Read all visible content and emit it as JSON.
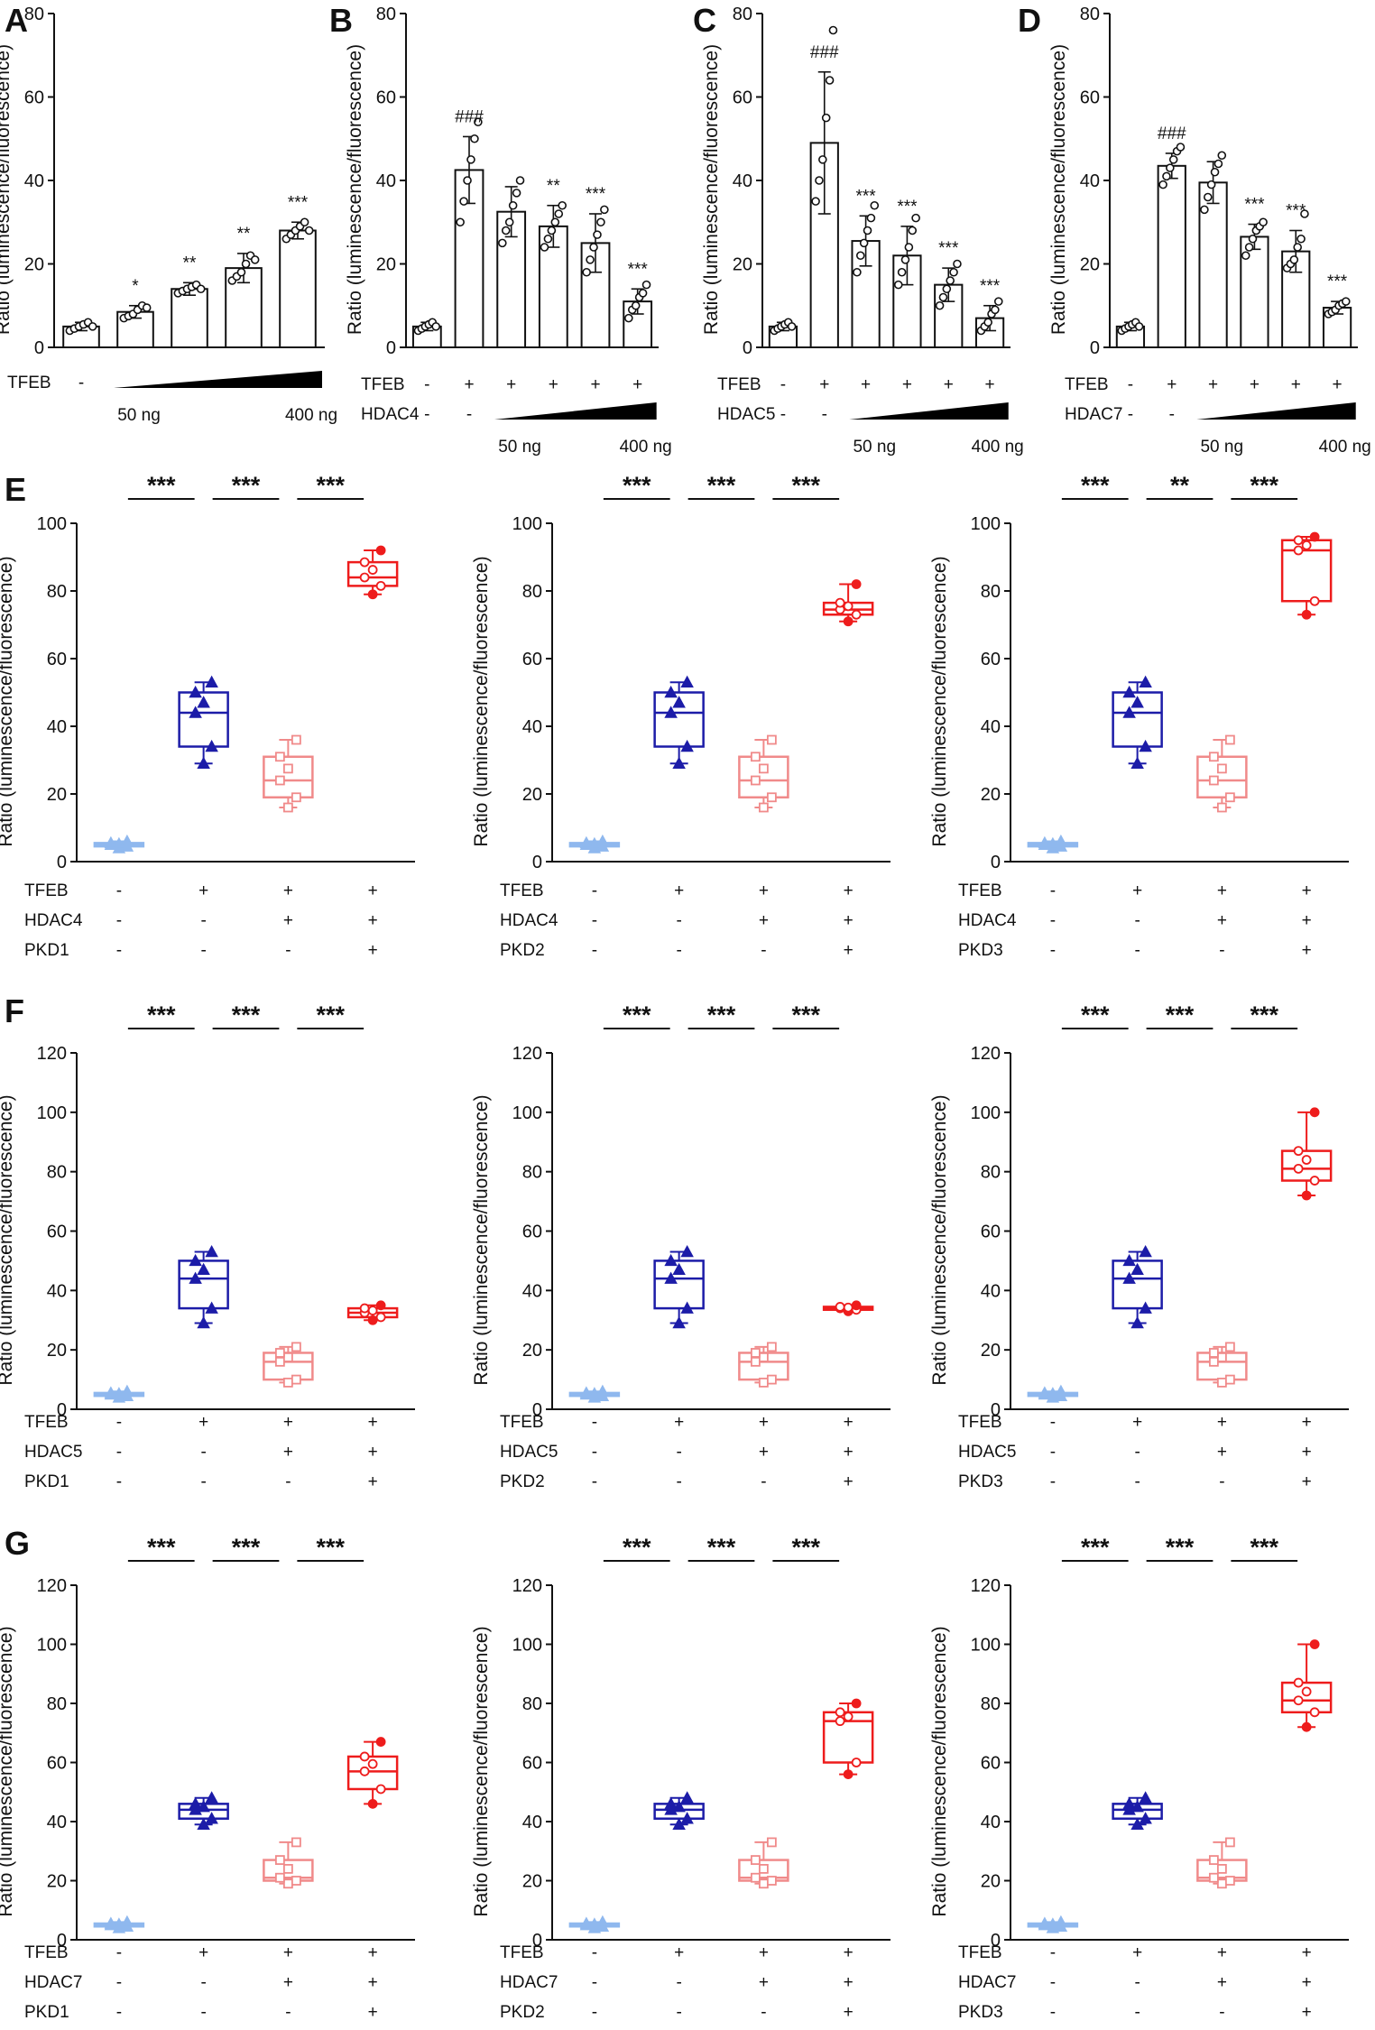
{
  "figure": {
    "ylabel": "Ratio (luminescence/fluorescence)",
    "dose_low": "50 ng",
    "dose_high": "400 ng"
  },
  "chart_data": [
    {
      "panel": "A",
      "type": "bar",
      "ylim": [
        0,
        80
      ],
      "yticks": [
        0,
        20,
        40,
        60,
        80
      ],
      "ylabel": "Ratio (luminescence/fluorescence)",
      "categories": [
        "-",
        "50 ng",
        "",
        "",
        "400 ng"
      ],
      "values": [
        5,
        8.5,
        14,
        19,
        28
      ],
      "errors": [
        1,
        1.5,
        1.5,
        3.5,
        2
      ],
      "points": [
        [
          4,
          4.5,
          5,
          5.5,
          6,
          5
        ],
        [
          7,
          7.5,
          8,
          9,
          10,
          9.5
        ],
        [
          13,
          13.5,
          14,
          14.5,
          15,
          14
        ],
        [
          16,
          17,
          18,
          20,
          22,
          21
        ],
        [
          26,
          27,
          28,
          29,
          30,
          28
        ]
      ],
      "annotations": [
        "",
        "*",
        "**",
        "**",
        "***"
      ],
      "conditions": [
        {
          "name": "TFEB",
          "marks": [
            "-",
            "ramp",
            "ramp",
            "ramp",
            "ramp"
          ]
        }
      ]
    },
    {
      "panel": "B",
      "type": "bar",
      "ylim": [
        0,
        80
      ],
      "yticks": [
        0,
        20,
        40,
        60,
        80
      ],
      "ylabel": "Ratio (luminescence/fluorescence)",
      "values": [
        5,
        42.5,
        32.5,
        29,
        25,
        11
      ],
      "errors": [
        1,
        8,
        6,
        5,
        7,
        3
      ],
      "points": [
        [
          4,
          4.5,
          5,
          5.5,
          6,
          5
        ],
        [
          30,
          35,
          40,
          45,
          50,
          54
        ],
        [
          25,
          28,
          30,
          34,
          37,
          40
        ],
        [
          24,
          26,
          28,
          30,
          32,
          34
        ],
        [
          18,
          21,
          24,
          27,
          30,
          33
        ],
        [
          7,
          9,
          10,
          12,
          13,
          15
        ]
      ],
      "annotations": [
        "",
        "###",
        "",
        "**",
        "***",
        "***"
      ],
      "conditions": [
        {
          "name": "TFEB",
          "marks": [
            "-",
            "+",
            "+",
            "+",
            "+",
            "+"
          ]
        },
        {
          "name": "HDAC4",
          "marks": [
            "-",
            "-",
            "ramp",
            "ramp",
            "ramp",
            "ramp"
          ]
        }
      ]
    },
    {
      "panel": "C",
      "type": "bar",
      "ylim": [
        0,
        80
      ],
      "yticks": [
        0,
        20,
        40,
        60,
        80
      ],
      "ylabel": "Ratio (luminescence/fluorescence)",
      "values": [
        5,
        49,
        25.5,
        22,
        15,
        7
      ],
      "errors": [
        1,
        17,
        6,
        7,
        4,
        3
      ],
      "points": [
        [
          4,
          4.5,
          5,
          5.5,
          6,
          5
        ],
        [
          35,
          40,
          45,
          55,
          64,
          76
        ],
        [
          18,
          22,
          25,
          28,
          31,
          34
        ],
        [
          15,
          18,
          21,
          24,
          28,
          31
        ],
        [
          10,
          12,
          14,
          16,
          18,
          20
        ],
        [
          4,
          5,
          6,
          8,
          9,
          11
        ]
      ],
      "annotations": [
        "",
        "###",
        "***",
        "***",
        "***",
        "***"
      ],
      "conditions": [
        {
          "name": "TFEB",
          "marks": [
            "-",
            "+",
            "+",
            "+",
            "+",
            "+"
          ]
        },
        {
          "name": "HDAC5",
          "marks": [
            "-",
            "-",
            "ramp",
            "ramp",
            "ramp",
            "ramp"
          ]
        }
      ]
    },
    {
      "panel": "D",
      "type": "bar",
      "ylim": [
        0,
        80
      ],
      "yticks": [
        0,
        20,
        40,
        60,
        80
      ],
      "ylabel": "Ratio (luminescence/fluorescence)",
      "values": [
        5,
        43.5,
        39.5,
        26.5,
        23,
        9.5
      ],
      "errors": [
        1,
        3,
        5,
        3,
        5,
        1.5
      ],
      "points": [
        [
          4,
          4.5,
          5,
          5.5,
          6,
          5
        ],
        [
          39,
          41,
          43,
          45,
          47,
          48
        ],
        [
          33,
          36,
          39,
          42,
          44,
          46
        ],
        [
          22,
          24,
          26,
          28,
          29,
          30
        ],
        [
          19,
          20,
          21,
          24,
          26,
          32
        ],
        [
          8,
          8.5,
          9,
          10,
          10.5,
          11
        ]
      ],
      "annotations": [
        "",
        "###",
        "",
        "***",
        "***",
        "***"
      ],
      "conditions": [
        {
          "name": "TFEB",
          "marks": [
            "-",
            "+",
            "+",
            "+",
            "+",
            "+"
          ]
        },
        {
          "name": "HDAC7",
          "marks": [
            "-",
            "-",
            "ramp",
            "ramp",
            "ramp",
            "ramp"
          ]
        }
      ]
    },
    {
      "panel": "E",
      "type": "box",
      "ylim": [
        0,
        100
      ],
      "yticks": [
        0,
        20,
        40,
        60,
        80,
        100
      ],
      "ylabel": "Ratio (luminescence/fluorescence)",
      "boxes": [
        {
          "min": 4,
          "q1": 4.5,
          "median": 5,
          "q3": 5.5,
          "max": 6
        },
        {
          "min": 29,
          "q1": 34,
          "median": 44,
          "q3": 50,
          "max": 53
        },
        {
          "min": 16,
          "q1": 19,
          "median": 24,
          "q3": 31,
          "max": 36
        },
        {
          "min": 79,
          "q1": 81.5,
          "median": 84,
          "q3": 88.5,
          "max": 92
        }
      ],
      "brackets": [
        "***",
        "***",
        "***"
      ],
      "conditions": [
        {
          "name": "TFEB",
          "marks": [
            "-",
            "+",
            "+",
            "+"
          ]
        },
        {
          "name": "HDAC4",
          "marks": [
            "-",
            "-",
            "+",
            "+"
          ]
        },
        {
          "name": "PKD1",
          "marks": [
            "-",
            "-",
            "-",
            "+"
          ]
        }
      ]
    },
    {
      "panel": "E",
      "type": "box",
      "ylim": [
        0,
        100
      ],
      "yticks": [
        0,
        20,
        40,
        60,
        80,
        100
      ],
      "ylabel": "Ratio (luminescence/fluorescence)",
      "boxes": [
        {
          "min": 4,
          "q1": 4.5,
          "median": 5,
          "q3": 5.5,
          "max": 6
        },
        {
          "min": 29,
          "q1": 34,
          "median": 44,
          "q3": 50,
          "max": 53
        },
        {
          "min": 16,
          "q1": 19,
          "median": 24,
          "q3": 31,
          "max": 36
        },
        {
          "min": 71,
          "q1": 73,
          "median": 74.5,
          "q3": 76.5,
          "max": 82
        }
      ],
      "brackets": [
        "***",
        "***",
        "***"
      ],
      "conditions": [
        {
          "name": "TFEB",
          "marks": [
            "-",
            "+",
            "+",
            "+"
          ]
        },
        {
          "name": "HDAC4",
          "marks": [
            "-",
            "-",
            "+",
            "+"
          ]
        },
        {
          "name": "PKD2",
          "marks": [
            "-",
            "-",
            "-",
            "+"
          ]
        }
      ]
    },
    {
      "panel": "E",
      "type": "box",
      "ylim": [
        0,
        100
      ],
      "yticks": [
        0,
        20,
        40,
        60,
        80,
        100
      ],
      "ylabel": "Ratio (luminescence/fluorescence)",
      "boxes": [
        {
          "min": 4,
          "q1": 4.5,
          "median": 5,
          "q3": 5.5,
          "max": 6
        },
        {
          "min": 29,
          "q1": 34,
          "median": 44,
          "q3": 50,
          "max": 53
        },
        {
          "min": 16,
          "q1": 19,
          "median": 24,
          "q3": 31,
          "max": 36
        },
        {
          "min": 73,
          "q1": 77,
          "median": 92,
          "q3": 95,
          "max": 96
        }
      ],
      "brackets": [
        "***",
        "**",
        "***"
      ],
      "conditions": [
        {
          "name": "TFEB",
          "marks": [
            "-",
            "+",
            "+",
            "+"
          ]
        },
        {
          "name": "HDAC4",
          "marks": [
            "-",
            "-",
            "+",
            "+"
          ]
        },
        {
          "name": "PKD3",
          "marks": [
            "-",
            "-",
            "-",
            "+"
          ]
        }
      ]
    },
    {
      "panel": "F",
      "type": "box",
      "ylim": [
        0,
        120
      ],
      "yticks": [
        0,
        20,
        40,
        60,
        80,
        100,
        120
      ],
      "ylabel": "Ratio (luminescence/fluorescence)",
      "boxes": [
        {
          "min": 4,
          "q1": 4.5,
          "median": 5,
          "q3": 5.5,
          "max": 6
        },
        {
          "min": 29,
          "q1": 34,
          "median": 44,
          "q3": 50,
          "max": 53
        },
        {
          "min": 9,
          "q1": 10,
          "median": 16,
          "q3": 19,
          "max": 21
        },
        {
          "min": 30,
          "q1": 31,
          "median": 32.5,
          "q3": 34,
          "max": 35
        }
      ],
      "brackets": [
        "***",
        "***",
        "***"
      ],
      "conditions": [
        {
          "name": "TFEB",
          "marks": [
            "-",
            "+",
            "+",
            "+"
          ]
        },
        {
          "name": "HDAC5",
          "marks": [
            "-",
            "-",
            "+",
            "+"
          ]
        },
        {
          "name": "PKD1",
          "marks": [
            "-",
            "-",
            "-",
            "+"
          ]
        }
      ]
    },
    {
      "panel": "F",
      "type": "box",
      "ylim": [
        0,
        120
      ],
      "yticks": [
        0,
        20,
        40,
        60,
        80,
        100,
        120
      ],
      "ylabel": "Ratio (luminescence/fluorescence)",
      "boxes": [
        {
          "min": 4,
          "q1": 4.5,
          "median": 5,
          "q3": 5.5,
          "max": 6
        },
        {
          "min": 29,
          "q1": 34,
          "median": 44,
          "q3": 50,
          "max": 53
        },
        {
          "min": 9,
          "q1": 10,
          "median": 16,
          "q3": 19,
          "max": 21
        },
        {
          "min": 33,
          "q1": 33.5,
          "median": 34,
          "q3": 34.5,
          "max": 35
        }
      ],
      "brackets": [
        "***",
        "***",
        "***"
      ],
      "conditions": [
        {
          "name": "TFEB",
          "marks": [
            "-",
            "+",
            "+",
            "+"
          ]
        },
        {
          "name": "HDAC5",
          "marks": [
            "-",
            "-",
            "+",
            "+"
          ]
        },
        {
          "name": "PKD2",
          "marks": [
            "-",
            "-",
            "-",
            "+"
          ]
        }
      ]
    },
    {
      "panel": "F",
      "type": "box",
      "ylim": [
        0,
        120
      ],
      "yticks": [
        0,
        20,
        40,
        60,
        80,
        100,
        120
      ],
      "ylabel": "Ratio (luminescence/fluorescence)",
      "boxes": [
        {
          "min": 4,
          "q1": 4.5,
          "median": 5,
          "q3": 5.5,
          "max": 6
        },
        {
          "min": 29,
          "q1": 34,
          "median": 44,
          "q3": 50,
          "max": 53
        },
        {
          "min": 9,
          "q1": 10,
          "median": 16,
          "q3": 19,
          "max": 21
        },
        {
          "min": 72,
          "q1": 77,
          "median": 81,
          "q3": 87,
          "max": 100
        }
      ],
      "brackets": [
        "***",
        "***",
        "***"
      ],
      "conditions": [
        {
          "name": "TFEB",
          "marks": [
            "-",
            "+",
            "+",
            "+"
          ]
        },
        {
          "name": "HDAC5",
          "marks": [
            "-",
            "-",
            "+",
            "+"
          ]
        },
        {
          "name": "PKD3",
          "marks": [
            "-",
            "-",
            "-",
            "+"
          ]
        }
      ]
    },
    {
      "panel": "G",
      "type": "box",
      "ylim": [
        0,
        120
      ],
      "yticks": [
        0,
        20,
        40,
        60,
        80,
        100,
        120
      ],
      "ylabel": "Ratio (luminescence/fluorescence)",
      "boxes": [
        {
          "min": 4,
          "q1": 4.5,
          "median": 5,
          "q3": 5.5,
          "max": 6
        },
        {
          "min": 39,
          "q1": 41,
          "median": 44,
          "q3": 46,
          "max": 48
        },
        {
          "min": 19,
          "q1": 20,
          "median": 21,
          "q3": 27,
          "max": 33
        },
        {
          "min": 46,
          "q1": 51,
          "median": 57,
          "q3": 62,
          "max": 67
        }
      ],
      "brackets": [
        "***",
        "***",
        "***"
      ],
      "conditions": [
        {
          "name": "TFEB",
          "marks": [
            "-",
            "+",
            "+",
            "+"
          ]
        },
        {
          "name": "HDAC7",
          "marks": [
            "-",
            "-",
            "+",
            "+"
          ]
        },
        {
          "name": "PKD1",
          "marks": [
            "-",
            "-",
            "-",
            "+"
          ]
        }
      ]
    },
    {
      "panel": "G",
      "type": "box",
      "ylim": [
        0,
        120
      ],
      "yticks": [
        0,
        20,
        40,
        60,
        80,
        100,
        120
      ],
      "ylabel": "Ratio (luminescence/fluorescence)",
      "boxes": [
        {
          "min": 4,
          "q1": 4.5,
          "median": 5,
          "q3": 5.5,
          "max": 6
        },
        {
          "min": 39,
          "q1": 41,
          "median": 44,
          "q3": 46,
          "max": 48
        },
        {
          "min": 19,
          "q1": 20,
          "median": 21,
          "q3": 27,
          "max": 33
        },
        {
          "min": 56,
          "q1": 60,
          "median": 74,
          "q3": 77,
          "max": 80
        }
      ],
      "brackets": [
        "***",
        "***",
        "***"
      ],
      "conditions": [
        {
          "name": "TFEB",
          "marks": [
            "-",
            "+",
            "+",
            "+"
          ]
        },
        {
          "name": "HDAC7",
          "marks": [
            "-",
            "-",
            "+",
            "+"
          ]
        },
        {
          "name": "PKD2",
          "marks": [
            "-",
            "-",
            "-",
            "+"
          ]
        }
      ]
    },
    {
      "panel": "G",
      "type": "box",
      "ylim": [
        0,
        120
      ],
      "yticks": [
        0,
        20,
        40,
        60,
        80,
        100,
        120
      ],
      "ylabel": "Ratio (luminescence/fluorescence)",
      "boxes": [
        {
          "min": 4,
          "q1": 4.5,
          "median": 5,
          "q3": 5.5,
          "max": 6
        },
        {
          "min": 39,
          "q1": 41,
          "median": 44,
          "q3": 46,
          "max": 48
        },
        {
          "min": 19,
          "q1": 20,
          "median": 21,
          "q3": 27,
          "max": 33
        },
        {
          "min": 72,
          "q1": 77,
          "median": 81,
          "q3": 87,
          "max": 100
        }
      ],
      "brackets": [
        "***",
        "***",
        "***"
      ],
      "conditions": [
        {
          "name": "TFEB",
          "marks": [
            "-",
            "+",
            "+",
            "+"
          ]
        },
        {
          "name": "HDAC7",
          "marks": [
            "-",
            "-",
            "+",
            "+"
          ]
        },
        {
          "name": "PKD3",
          "marks": [
            "-",
            "-",
            "-",
            "+"
          ]
        }
      ]
    }
  ],
  "box_colors": [
    "#8fb8ee",
    "#1c1ca8",
    "#f08a8a",
    "#ee1c1c"
  ],
  "box_markers": [
    "triangle",
    "triangle",
    "square",
    "circle"
  ]
}
